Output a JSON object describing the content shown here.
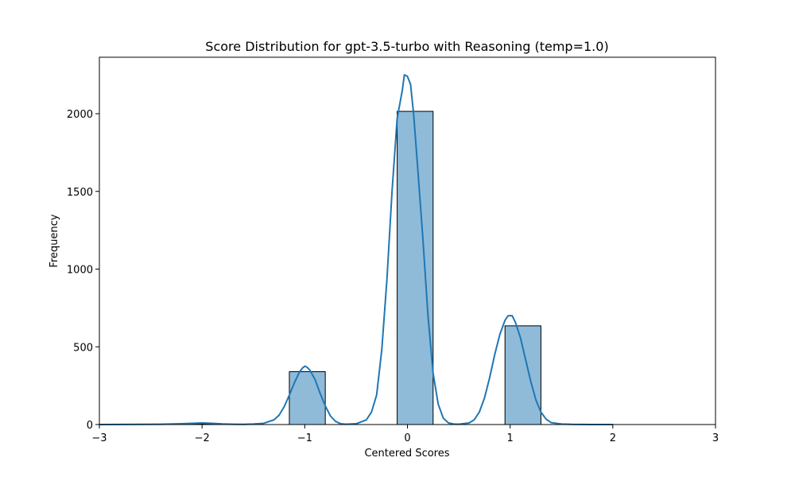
{
  "chart_data": {
    "type": "bar",
    "title": "Score Distribution for gpt-3.5-turbo with Reasoning (temp=1.0)",
    "xlabel": "Centered Scores",
    "ylabel": "Frequency",
    "xlim": [
      -3,
      3
    ],
    "ylim": [
      0,
      2300
    ],
    "x_ticks": [
      -3,
      -2,
      -1,
      0,
      1,
      2,
      3
    ],
    "x_tick_labels": [
      "−3",
      "−2",
      "−1",
      "0",
      "1",
      "2",
      "3"
    ],
    "y_ticks": [
      0,
      500,
      1000,
      1500,
      2000
    ],
    "y_tick_labels": [
      "0",
      "500",
      "1000",
      "1500",
      "2000"
    ],
    "grid": false,
    "legend": "none",
    "bars": [
      {
        "x0": -2.2,
        "x1": -1.85,
        "value": 3
      },
      {
        "x0": -1.15,
        "x1": -0.8,
        "value": 340
      },
      {
        "x0": -0.1,
        "x1": 0.25,
        "value": 2015
      },
      {
        "x0": 0.95,
        "x1": 1.3,
        "value": 635
      }
    ],
    "kde": {
      "name": "",
      "x": [
        -3.0,
        -2.6,
        -2.4,
        -2.2,
        -2.1,
        -2.0,
        -1.9,
        -1.8,
        -1.7,
        -1.6,
        -1.5,
        -1.4,
        -1.3,
        -1.25,
        -1.2,
        -1.15,
        -1.1,
        -1.05,
        -1.02,
        -1.0,
        -0.98,
        -0.95,
        -0.9,
        -0.85,
        -0.8,
        -0.75,
        -0.7,
        -0.65,
        -0.6,
        -0.5,
        -0.4,
        -0.35,
        -0.3,
        -0.25,
        -0.2,
        -0.15,
        -0.1,
        -0.05,
        -0.03,
        0.0,
        0.03,
        0.06,
        0.1,
        0.15,
        0.2,
        0.25,
        0.3,
        0.35,
        0.4,
        0.45,
        0.5,
        0.6,
        0.65,
        0.7,
        0.75,
        0.8,
        0.85,
        0.9,
        0.95,
        0.98,
        1.02,
        1.05,
        1.1,
        1.15,
        1.2,
        1.25,
        1.3,
        1.35,
        1.4,
        1.5,
        1.6,
        1.8,
        2.0
      ],
      "y": [
        0,
        1,
        2,
        5,
        8,
        10,
        8,
        4,
        2,
        1,
        3,
        8,
        30,
        60,
        115,
        190,
        270,
        340,
        365,
        375,
        370,
        350,
        290,
        200,
        120,
        55,
        20,
        5,
        2,
        5,
        30,
        80,
        190,
        480,
        930,
        1500,
        1970,
        2150,
        2250,
        2240,
        2190,
        2000,
        1650,
        1200,
        700,
        330,
        130,
        40,
        10,
        3,
        2,
        10,
        30,
        80,
        170,
        300,
        450,
        580,
        670,
        700,
        700,
        660,
        560,
        420,
        280,
        160,
        80,
        35,
        12,
        3,
        1,
        0,
        0
      ],
      "color": "#1f77b4"
    },
    "colors": {
      "bar_fill": "#8fbbd9",
      "bar_edge": "#000000",
      "line": "#1f77b4"
    }
  }
}
